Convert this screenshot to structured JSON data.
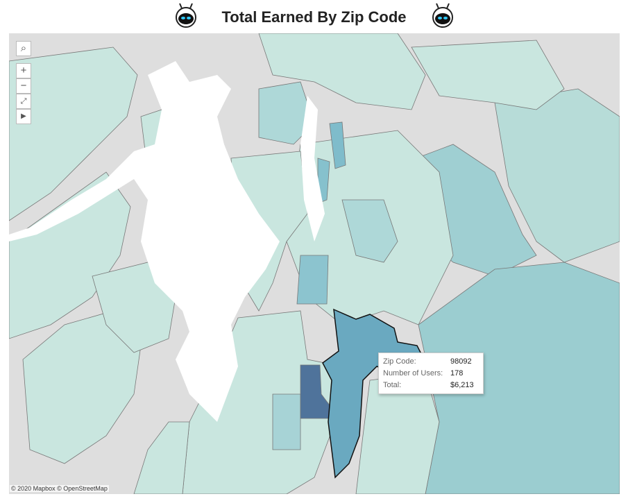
{
  "title": "Total Earned By Zip Code",
  "tooltip": {
    "rows": [
      {
        "label": "Zip Code:",
        "value": "98092"
      },
      {
        "label": "Number of Users:",
        "value": "178"
      },
      {
        "label": "Total:",
        "value": "$6,213"
      }
    ]
  },
  "attribution": "© 2020 Mapbox © OpenStreetMap"
}
